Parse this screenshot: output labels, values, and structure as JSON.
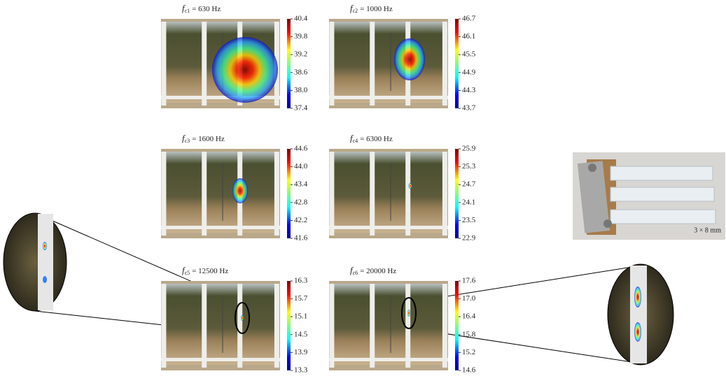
{
  "panels": [
    {
      "symbol": "f",
      "sub": "c1",
      "value": "= 630 Hz",
      "ticks": [
        "40.4",
        "39.8",
        "39.2",
        "38.6",
        "38.0",
        "37.4"
      ]
    },
    {
      "symbol": "f",
      "sub": "c2",
      "value": "= 1000 Hz",
      "ticks": [
        "46.7",
        "46.1",
        "45.5",
        "44.9",
        "44.3",
        "43.7"
      ]
    },
    {
      "symbol": "f",
      "sub": "c3",
      "value": "= 1600 Hz",
      "ticks": [
        "44.6",
        "44.0",
        "43.4",
        "42.8",
        "42.2",
        "41.6"
      ]
    },
    {
      "symbol": "f",
      "sub": "c4",
      "value": "= 6300 Hz",
      "ticks": [
        "25.9",
        "25.3",
        "24.7",
        "24.1",
        "23.5",
        "22.9"
      ]
    },
    {
      "symbol": "f",
      "sub": "c5",
      "value": "= 12500 Hz",
      "ticks": [
        "16.3",
        "15.7",
        "15.1",
        "14.5",
        "13.9",
        "13.3"
      ]
    },
    {
      "symbol": "f",
      "sub": "c6",
      "value": "= 20000 Hz",
      "ticks": [
        "17.6",
        "17.0",
        "16.4",
        "15.8",
        "15.2",
        "14.6"
      ]
    }
  ],
  "inset": {
    "label": "3 × 8 mm"
  }
}
